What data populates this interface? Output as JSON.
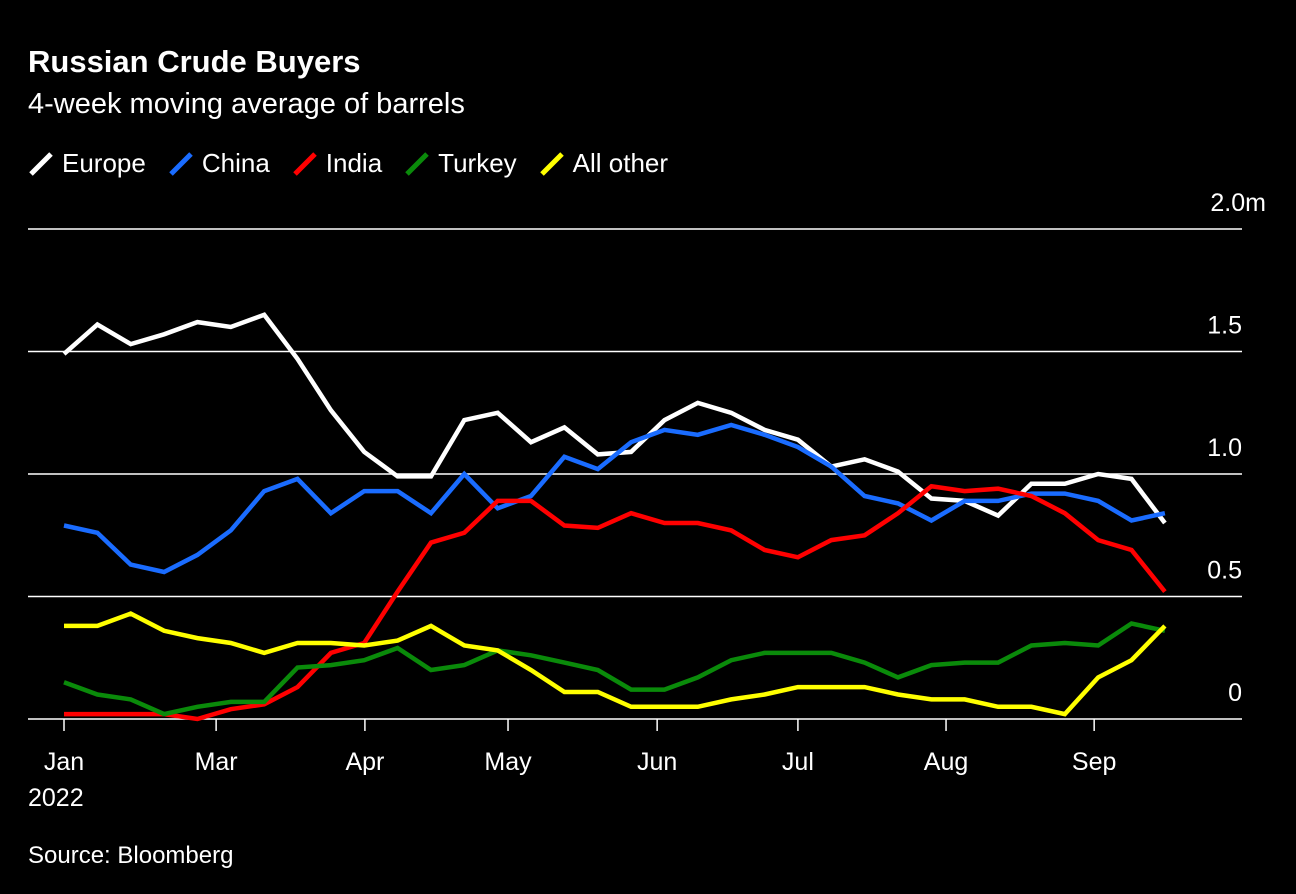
{
  "chart_data": {
    "type": "line",
    "title": "Russian Crude Buyers",
    "subtitle": "4-week moving average of barrels",
    "source": "Source: Bloomberg",
    "xlabel": "",
    "ylabel": "",
    "ylim": [
      0,
      2.0
    ],
    "yticks": [
      {
        "v": 0,
        "label": "0"
      },
      {
        "v": 0.5,
        "label": "0.5"
      },
      {
        "v": 1.0,
        "label": "1.0"
      },
      {
        "v": 1.5,
        "label": "1.5"
      },
      {
        "v": 2.0,
        "label": "2.0m"
      }
    ],
    "x_unit": "week index from first week of Jan 2022",
    "xticks": [
      {
        "v": 0,
        "label": "Jan"
      },
      {
        "v": 4.56,
        "label": "Mar"
      },
      {
        "v": 9.02,
        "label": "Apr"
      },
      {
        "v": 13.31,
        "label": "May"
      },
      {
        "v": 17.78,
        "label": "Jun"
      },
      {
        "v": 22.0,
        "label": "Jul"
      },
      {
        "v": 26.44,
        "label": "Aug"
      },
      {
        "v": 30.88,
        "label": "Sep"
      }
    ],
    "year_label": "2022",
    "grid": true,
    "legend_position": "top-left",
    "series": [
      {
        "name": "Europe",
        "color": "#ffffff",
        "values": [
          1.49,
          1.61,
          1.53,
          1.57,
          1.62,
          1.6,
          1.65,
          1.47,
          1.26,
          1.09,
          0.99,
          0.99,
          1.22,
          1.25,
          1.13,
          1.19,
          1.08,
          1.09,
          1.22,
          1.29,
          1.25,
          1.18,
          1.14,
          1.03,
          1.06,
          1.01,
          0.9,
          0.89,
          0.83,
          0.96,
          0.96,
          1.0,
          0.98,
          0.8
        ]
      },
      {
        "name": "China",
        "color": "#1a6cff",
        "values": [
          0.79,
          0.76,
          0.63,
          0.6,
          0.67,
          0.77,
          0.93,
          0.98,
          0.84,
          0.93,
          0.93,
          0.84,
          1.0,
          0.86,
          0.91,
          1.07,
          1.02,
          1.13,
          1.18,
          1.16,
          1.2,
          1.16,
          1.11,
          1.03,
          0.91,
          0.88,
          0.81,
          0.89,
          0.89,
          0.92,
          0.92,
          0.89,
          0.81,
          0.84
        ]
      },
      {
        "name": "India",
        "color": "#ff0000",
        "values": [
          0.02,
          0.02,
          0.02,
          0.02,
          0.0,
          0.04,
          0.06,
          0.13,
          0.27,
          0.31,
          0.52,
          0.72,
          0.76,
          0.89,
          0.89,
          0.79,
          0.78,
          0.84,
          0.8,
          0.8,
          0.77,
          0.69,
          0.66,
          0.73,
          0.75,
          0.84,
          0.95,
          0.93,
          0.94,
          0.91,
          0.84,
          0.73,
          0.69,
          0.52
        ]
      },
      {
        "name": "Turkey",
        "color": "#0a8a0a",
        "values": [
          0.15,
          0.1,
          0.08,
          0.02,
          0.05,
          0.07,
          0.07,
          0.21,
          0.22,
          0.24,
          0.29,
          0.2,
          0.22,
          0.28,
          0.26,
          0.23,
          0.2,
          0.12,
          0.12,
          0.17,
          0.24,
          0.27,
          0.27,
          0.27,
          0.23,
          0.17,
          0.22,
          0.23,
          0.23,
          0.3,
          0.31,
          0.3,
          0.39,
          0.36
        ]
      },
      {
        "name": "All other",
        "color": "#ffff00",
        "values": [
          0.38,
          0.38,
          0.43,
          0.36,
          0.33,
          0.31,
          0.27,
          0.31,
          0.31,
          0.3,
          0.32,
          0.38,
          0.3,
          0.28,
          0.2,
          0.11,
          0.11,
          0.05,
          0.05,
          0.05,
          0.08,
          0.1,
          0.13,
          0.13,
          0.13,
          0.1,
          0.08,
          0.08,
          0.05,
          0.05,
          0.02,
          0.17,
          0.24,
          0.38
        ]
      }
    ]
  }
}
